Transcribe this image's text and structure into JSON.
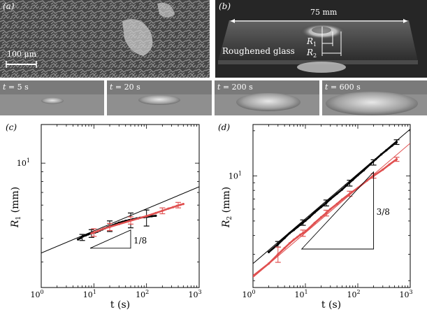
{
  "panels": {
    "a": {
      "label": "(a)",
      "scalebar_label": "100 μm"
    },
    "b": {
      "label": "(b)",
      "width_label": "75 mm",
      "r1_label": "R",
      "r1_sub": "1",
      "r2_label": "R",
      "r2_sub": "2",
      "material_label": "Roughened glass"
    },
    "strips": [
      {
        "t_label": "t",
        "t_value": " = 5 s"
      },
      {
        "t_label": "t",
        "t_value": " = 20 s"
      },
      {
        "t_label": "t",
        "t_value": " = 200 s"
      },
      {
        "t_label": "t",
        "t_value": " = 600 s"
      }
    ]
  },
  "colors": {
    "black_series": "#000000",
    "red_series": "#e05050",
    "photo_dark": "#2a2a2a",
    "photo_mid": "#8a8a8a",
    "photo_light": "#dcdcdc"
  },
  "chart_data": [
    {
      "type": "scatter",
      "panel_label": "(c)",
      "xlabel": "t (s)",
      "ylabel_symbol": "R",
      "ylabel_sub": "1",
      "ylabel_unit": " (mm)",
      "x_scale": "log",
      "y_scale": "log",
      "xlim": [
        1,
        1000
      ],
      "ylim": [
        2.2,
        16
      ],
      "x_ticks": [
        1,
        10,
        100,
        1000
      ],
      "x_tick_labels": [
        "10",
        "10",
        "10",
        "10"
      ],
      "x_tick_exps": [
        "0",
        "1",
        "2",
        "3"
      ],
      "y_ticks": [
        10
      ],
      "y_tick_labels": [
        "10"
      ],
      "y_tick_exps": [
        "1"
      ],
      "slope_label": "1/8",
      "slope_triangle": {
        "x0": 8.5,
        "x1": 50,
        "y": 3.55,
        "slope": 0.125
      },
      "fit_lines": [
        {
          "color": "black",
          "x": [
            1,
            1000
          ],
          "y": [
            3.35,
            7.5
          ]
        }
      ],
      "series": [
        {
          "color": "black",
          "points": {
            "x": [
              5,
              5.6,
              6.2,
              7,
              7.8,
              8.7,
              9.6,
              10.6,
              11.7,
              13,
              14.5,
              16,
              18,
              20,
              23,
              26,
              30,
              35,
              40,
              47,
              55,
              65,
              75,
              90,
              105,
              125,
              150
            ],
            "y": [
              3.95,
              4.02,
              4.1,
              4.15,
              4.2,
              4.25,
              4.28,
              4.3,
              4.34,
              4.4,
              4.46,
              4.52,
              4.58,
              4.64,
              4.7,
              4.77,
              4.84,
              4.9,
              4.95,
              5.0,
              5.05,
              5.1,
              5.14,
              5.18,
              5.21,
              5.24,
              5.27
            ]
          },
          "errorbars": {
            "x": [
              6,
              9,
              20,
              50,
              100
            ],
            "y": [
              4.05,
              4.25,
              4.65,
              5.0,
              5.15
            ],
            "err": [
              0.15,
              0.2,
              0.3,
              0.45,
              0.5
            ]
          }
        },
        {
          "color": "red",
          "points": {
            "x": [
              9,
              10,
              12,
              15,
              20,
              30,
              45,
              70,
              100,
              150,
              200,
              260,
              320,
              380,
              440,
              500
            ],
            "y": [
              4.25,
              4.3,
              4.38,
              4.5,
              4.6,
              4.76,
              4.92,
              5.1,
              5.25,
              5.45,
              5.6,
              5.75,
              5.85,
              5.95,
              6.02,
              6.08
            ]
          },
          "errorbars": {
            "x": [
              10,
              20,
              50,
              200,
              400
            ],
            "y": [
              4.3,
              4.6,
              4.98,
              5.6,
              6.0
            ],
            "err": [
              0.2,
              0.2,
              0.22,
              0.2,
              0.2
            ]
          }
        }
      ]
    },
    {
      "type": "scatter",
      "panel_label": "(d)",
      "xlabel": "t (s)",
      "ylabel_symbol": "R",
      "ylabel_sub": "2",
      "ylabel_unit": " (mm)",
      "x_scale": "log",
      "y_scale": "log",
      "xlim": [
        1,
        1000
      ],
      "ylim": [
        1.8,
        22
      ],
      "x_ticks": [
        1,
        10,
        100,
        1000
      ],
      "x_tick_labels": [
        "10",
        "10",
        "10",
        "10"
      ],
      "x_tick_exps": [
        "0",
        "1",
        "2",
        "3"
      ],
      "y_ticks": [
        10
      ],
      "y_tick_labels": [
        "10"
      ],
      "y_tick_exps": [
        "1"
      ],
      "slope_label": "3/8",
      "slope_triangle": {
        "x0": 8.5,
        "x1": 200,
        "y": 3.25,
        "slope": 0.375
      },
      "fit_lines": [
        {
          "color": "black",
          "x": [
            1,
            1000
          ],
          "y": [
            2.6,
            20.5
          ]
        },
        {
          "color": "red",
          "x": [
            1,
            1000
          ],
          "y": [
            2.1,
            16.5
          ]
        }
      ],
      "series": [
        {
          "color": "black",
          "points": {
            "x": [
              2,
              3,
              4,
              5,
              6,
              7,
              8,
              9,
              10,
              12,
              15,
              20,
              25,
              30,
              40,
              50,
              60,
              80,
              100,
              130,
              170,
              220,
              280,
              350,
              450,
              550
            ],
            "y": [
              3.1,
              3.5,
              3.85,
              4.15,
              4.35,
              4.55,
              4.72,
              4.88,
              5.02,
              5.3,
              5.7,
              6.2,
              6.6,
              7.0,
              7.6,
              8.1,
              8.6,
              9.4,
              10.1,
              10.9,
              11.9,
              12.9,
              13.9,
              14.8,
              15.9,
              16.8
            ]
          },
          "errorbars": {
            "x": [
              3,
              9,
              25,
              70,
              200,
              550
            ],
            "y": [
              3.5,
              4.88,
              6.6,
              8.95,
              12.3,
              16.8
            ],
            "err": [
              0.15,
              0.2,
              0.3,
              0.4,
              0.5,
              0.6
            ]
          }
        },
        {
          "color": "red",
          "points": {
            "x": [
              1,
              2,
              3,
              4,
              5,
              6,
              7,
              8,
              9,
              10,
              12,
              15,
              20,
              25,
              30,
              40,
              50,
              70,
              100,
              150,
              200,
              300,
              400,
              550
            ],
            "y": [
              2.15,
              2.6,
              3.0,
              3.3,
              3.55,
              3.75,
              3.9,
              4.05,
              4.15,
              4.25,
              4.5,
              4.85,
              5.3,
              5.65,
              6.0,
              6.5,
              6.95,
              7.6,
              8.3,
              9.3,
              10.0,
              11.0,
              11.9,
              12.9
            ]
          },
          "errorbars": {
            "x": [
              3,
              9,
              25,
              70,
              200,
              550
            ],
            "y": [
              3.0,
              4.15,
              5.65,
              7.6,
              10.0,
              12.9
            ],
            "err": [
              0.35,
              0.2,
              0.25,
              0.3,
              0.35,
              0.4
            ]
          }
        }
      ]
    }
  ]
}
